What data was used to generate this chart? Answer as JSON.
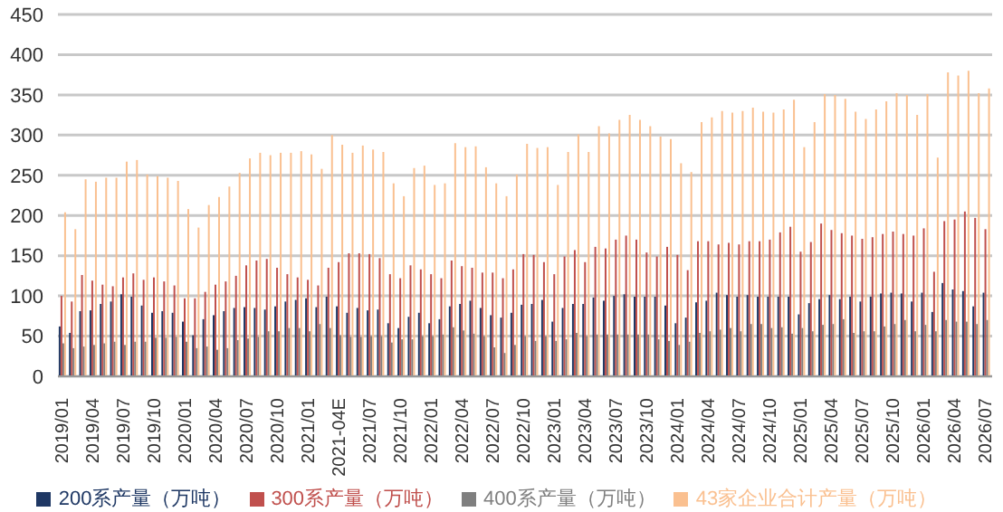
{
  "chart_data": {
    "type": "bar",
    "categories": [
      "2019/01",
      null,
      null,
      "2019/04",
      null,
      null,
      "2019/07",
      null,
      null,
      "2019/10",
      null,
      null,
      "2020/01",
      null,
      null,
      "2020/04",
      null,
      null,
      "2020/07",
      null,
      null,
      "2020/10",
      null,
      null,
      "2021/01",
      null,
      null,
      "2021-04E",
      null,
      null,
      "2021/07",
      null,
      null,
      "2021/10",
      null,
      null,
      "2022/01",
      null,
      null,
      "2022/04",
      null,
      null,
      "2022/07",
      null,
      null,
      "2022/10",
      null,
      null,
      "2023/01",
      null,
      null,
      "2023/04",
      null,
      null,
      "2023/07",
      null,
      null,
      "2023/10",
      null,
      null,
      "2024/01",
      null,
      null,
      "2024/04",
      null,
      null,
      "2024/07",
      null,
      null,
      "2024/10",
      null,
      null,
      "2025/01",
      null,
      null,
      "2025/04",
      null,
      null,
      "2025/07",
      null,
      null,
      "2025/10",
      null,
      null,
      "2026/01",
      null,
      null,
      "2026/04",
      null,
      null,
      "2026/07"
    ],
    "series": [
      {
        "name": "200系产量（万吨）",
        "color": "#1f3864",
        "values": [
          62,
          54,
          81,
          82,
          90,
          93,
          102,
          99,
          88,
          79,
          81,
          79,
          68,
          51,
          71,
          76,
          81,
          85,
          86,
          85,
          83,
          87,
          93,
          95,
          97,
          86,
          99,
          87,
          79,
          85,
          82,
          83,
          66,
          60,
          74,
          79,
          66,
          71,
          87,
          90,
          94,
          85,
          76,
          73,
          79,
          89,
          90,
          95,
          68,
          85,
          90,
          90,
          98,
          94,
          100,
          102,
          99,
          99,
          99,
          88,
          66,
          73,
          92,
          94,
          104,
          101,
          99,
          101,
          99,
          99,
          99,
          99,
          77,
          91,
          96,
          101,
          96,
          99,
          93,
          99,
          103,
          104,
          103,
          93,
          104,
          80,
          116,
          108,
          106,
          87,
          104
        ]
      },
      {
        "name": "300系产量（万吨）",
        "color": "#c0504d",
        "values": [
          100,
          93,
          126,
          119,
          114,
          112,
          123,
          128,
          120,
          123,
          118,
          113,
          97,
          97,
          105,
          114,
          118,
          125,
          138,
          144,
          146,
          135,
          127,
          123,
          120,
          113,
          135,
          142,
          153,
          153,
          152,
          147,
          127,
          122,
          138,
          133,
          127,
          122,
          144,
          137,
          135,
          129,
          129,
          122,
          133,
          152,
          151,
          142,
          127,
          149,
          157,
          142,
          161,
          159,
          170,
          175,
          170,
          154,
          149,
          161,
          151,
          132,
          168,
          168,
          164,
          166,
          164,
          168,
          168,
          170,
          179,
          186,
          155,
          167,
          190,
          182,
          178,
          175,
          171,
          173,
          177,
          180,
          177,
          175,
          184,
          130,
          193,
          195,
          205,
          197,
          183
        ]
      },
      {
        "name": "400系产量（万吨）",
        "color": "#7f7f7f",
        "values": [
          41,
          35,
          37,
          39,
          41,
          43,
          39,
          43,
          43,
          48,
          48,
          49,
          43,
          35,
          37,
          33,
          35,
          45,
          47,
          49,
          56,
          56,
          60,
          60,
          56,
          65,
          60,
          51,
          49,
          49,
          50,
          50,
          42,
          46,
          46,
          50,
          50,
          52,
          61,
          57,
          53,
          50,
          36,
          29,
          39,
          50,
          44,
          50,
          44,
          46,
          54,
          50,
          52,
          52,
          52,
          52,
          52,
          52,
          46,
          44,
          39,
          43,
          54,
          56,
          58,
          60,
          56,
          65,
          65,
          60,
          61,
          53,
          60,
          56,
          64,
          65,
          71,
          54,
          56,
          56,
          62,
          65,
          70,
          56,
          64,
          56,
          70,
          68,
          68,
          65,
          70
        ]
      },
      {
        "name": "43家企业合计产量（万吨）",
        "color": "#fac090",
        "values": [
          204,
          183,
          245,
          242,
          247,
          247,
          267,
          269,
          251,
          249,
          247,
          243,
          208,
          185,
          213,
          223,
          236,
          253,
          271,
          278,
          275,
          278,
          278,
          280,
          276,
          258,
          300,
          288,
          278,
          287,
          282,
          279,
          240,
          224,
          259,
          262,
          238,
          240,
          290,
          285,
          286,
          260,
          240,
          224,
          251,
          289,
          284,
          285,
          238,
          279,
          301,
          279,
          311,
          302,
          319,
          325,
          319,
          311,
          298,
          295,
          265,
          254,
          316,
          322,
          330,
          328,
          330,
          334,
          329,
          328,
          332,
          344,
          285,
          316,
          351,
          350,
          345,
          329,
          320,
          332,
          342,
          352,
          350,
          325,
          351,
          272,
          378,
          374,
          380,
          352,
          358
        ]
      }
    ],
    "ylim": [
      0,
      450
    ],
    "yticks": [
      0,
      50,
      100,
      150,
      200,
      250,
      300,
      350,
      400,
      450
    ],
    "grid": "y",
    "legend": "bottom"
  }
}
